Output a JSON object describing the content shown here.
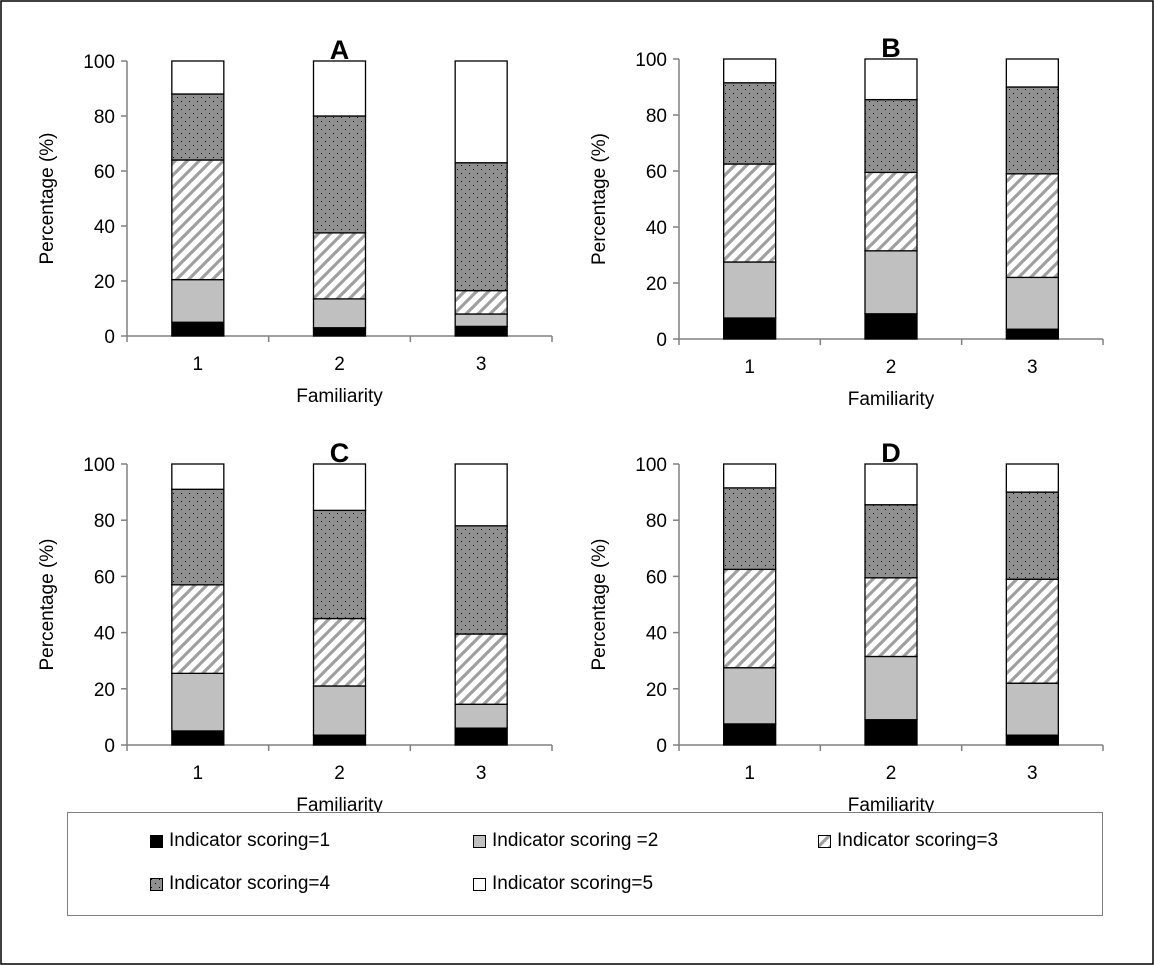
{
  "styles": {
    "fills": [
      "#000000",
      "#c0c0c0",
      "hatch",
      "dots",
      "#ffffff"
    ],
    "axis_color": "#808080"
  },
  "legend": {
    "items": [
      {
        "label": "Indicator scoring=1"
      },
      {
        "label": "Indicator scoring =2"
      },
      {
        "label": "Indicator scoring=3"
      },
      {
        "label": "Indicator scoring=4"
      },
      {
        "label": "Indicator scoring=5"
      }
    ]
  },
  "chart_data": [
    {
      "type": "bar",
      "stacked": true,
      "title": "A",
      "xlabel": "Familiarity",
      "ylabel": "Percentage (%)",
      "ylim": [
        0,
        100
      ],
      "yticks": [
        0,
        20,
        40,
        60,
        80,
        100
      ],
      "categories": [
        "1",
        "2",
        "3"
      ],
      "series": [
        {
          "name": "Indicator scoring=1",
          "values": [
            5,
            3,
            3.5
          ]
        },
        {
          "name": "Indicator scoring =2",
          "values": [
            15.5,
            10.5,
            4.5
          ]
        },
        {
          "name": "Indicator scoring=3",
          "values": [
            43.5,
            24,
            8.5
          ]
        },
        {
          "name": "Indicator scoring=4",
          "values": [
            24,
            42.5,
            46.5
          ]
        },
        {
          "name": "Indicator scoring=5",
          "values": [
            12,
            20,
            37
          ]
        }
      ]
    },
    {
      "type": "bar",
      "stacked": true,
      "title": "B",
      "xlabel": "Familiarity",
      "ylabel": "Percentage (%)",
      "ylim": [
        0,
        100
      ],
      "yticks": [
        0,
        20,
        40,
        60,
        80,
        100
      ],
      "categories": [
        "1",
        "2",
        "3"
      ],
      "series": [
        {
          "name": "Indicator scoring=1",
          "values": [
            7.5,
            9,
            3.5
          ]
        },
        {
          "name": "Indicator scoring =2",
          "values": [
            20,
            22.5,
            18.5
          ]
        },
        {
          "name": "Indicator scoring=3",
          "values": [
            35,
            28,
            37
          ]
        },
        {
          "name": "Indicator scoring=4",
          "values": [
            29,
            26,
            31
          ]
        },
        {
          "name": "Indicator scoring=5",
          "values": [
            8.5,
            14.5,
            10
          ]
        }
      ]
    },
    {
      "type": "bar",
      "stacked": true,
      "title": "C",
      "xlabel": "Familiarity",
      "ylabel": "Percentage (%)",
      "ylim": [
        0,
        100
      ],
      "yticks": [
        0,
        20,
        40,
        60,
        80,
        100
      ],
      "categories": [
        "1",
        "2",
        "3"
      ],
      "series": [
        {
          "name": "Indicator scoring=1",
          "values": [
            5,
            3.5,
            6
          ]
        },
        {
          "name": "Indicator scoring =2",
          "values": [
            20.5,
            17.5,
            8.5
          ]
        },
        {
          "name": "Indicator scoring=3",
          "values": [
            31.5,
            24,
            25
          ]
        },
        {
          "name": "Indicator scoring=4",
          "values": [
            34,
            38.5,
            38.5
          ]
        },
        {
          "name": "Indicator scoring=5",
          "values": [
            9,
            16.5,
            22
          ]
        }
      ]
    },
    {
      "type": "bar",
      "stacked": true,
      "title": "D",
      "xlabel": "Familiarity",
      "ylabel": "Percentage (%)",
      "ylim": [
        0,
        100
      ],
      "yticks": [
        0,
        20,
        40,
        60,
        80,
        100
      ],
      "categories": [
        "1",
        "2",
        "3"
      ],
      "series": [
        {
          "name": "Indicator scoring=1",
          "values": [
            7.5,
            9,
            3.5
          ]
        },
        {
          "name": "Indicator scoring =2",
          "values": [
            20,
            22.5,
            18.5
          ]
        },
        {
          "name": "Indicator scoring=3",
          "values": [
            35,
            28,
            37
          ]
        },
        {
          "name": "Indicator scoring=4",
          "values": [
            29,
            26,
            31
          ]
        },
        {
          "name": "Indicator scoring=5",
          "values": [
            8.5,
            14.5,
            10
          ]
        }
      ]
    }
  ]
}
